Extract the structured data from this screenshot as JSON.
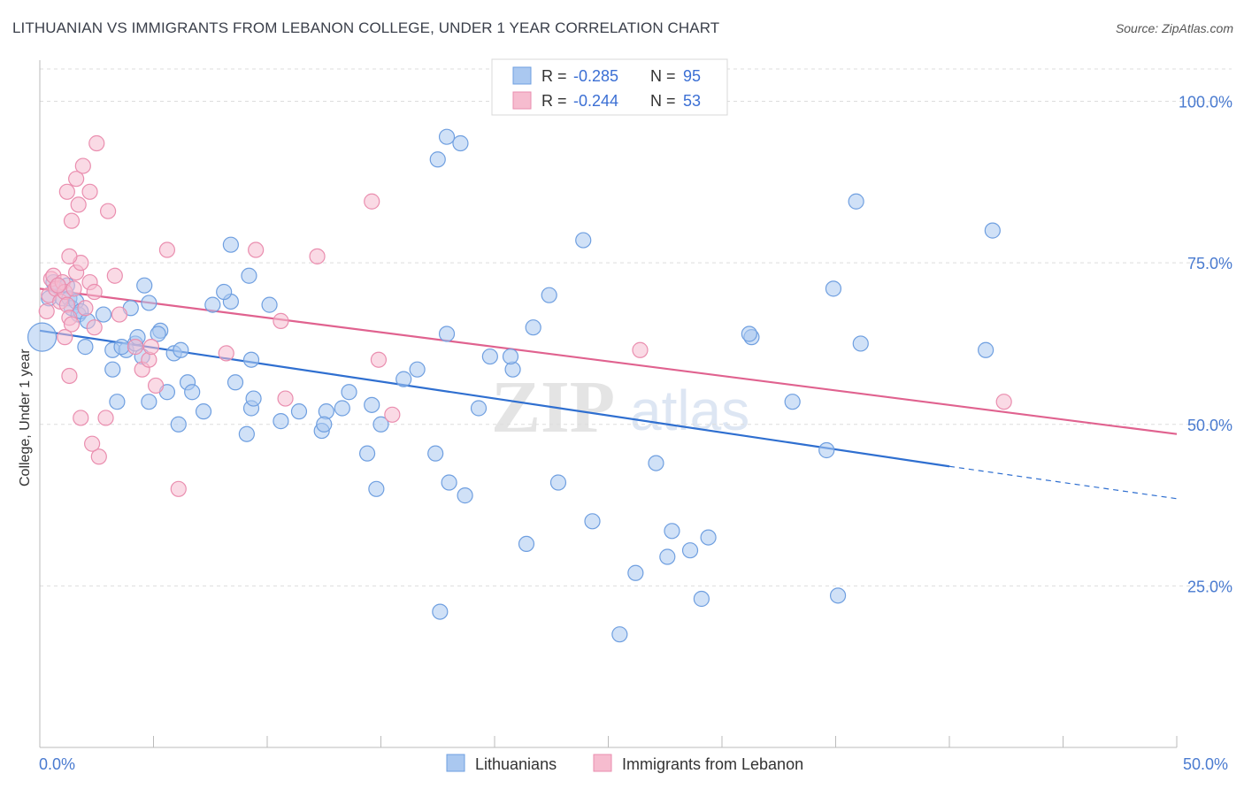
{
  "title": "LITHUANIAN VS IMMIGRANTS FROM LEBANON COLLEGE, UNDER 1 YEAR CORRELATION CHART",
  "source": "Source: ZipAtlas.com",
  "watermark": {
    "zip": "ZIP",
    "atlas": "atlas"
  },
  "colors": {
    "blue_fill": "#aac8f0",
    "blue_stroke": "#6f9fe0",
    "blue_line": "#2f6fd0",
    "pink_fill": "#f6bccf",
    "pink_stroke": "#ea8eaf",
    "pink_line": "#e0628f",
    "tick_label": "#4a7bd0",
    "grid": "#dddddd"
  },
  "legend": {
    "rows": [
      {
        "r_label": "R = ",
        "r_value": "-0.285",
        "n_label": "N = ",
        "n_value": "95",
        "series": "blue"
      },
      {
        "r_label": "R = ",
        "r_value": "-0.244",
        "n_label": "N = ",
        "n_value": "53",
        "series": "pink"
      }
    ]
  },
  "chart_data": {
    "type": "scatter",
    "title": "LITHUANIAN VS IMMIGRANTS FROM LEBANON COLLEGE, UNDER 1 YEAR CORRELATION CHART",
    "xlabel": "",
    "ylabel": "College, Under 1 year",
    "xlim": [
      0,
      50
    ],
    "ylim": [
      0,
      105
    ],
    "x_tick_labels": [
      "0.0%",
      "50.0%"
    ],
    "y_ticks": [
      25,
      50,
      75,
      100
    ],
    "y_tick_labels": [
      "25.0%",
      "50.0%",
      "75.0%",
      "100.0%"
    ],
    "grid": true,
    "legend_position": "top-center",
    "series": [
      {
        "name": "Lithuanians",
        "color": "#aac8f0",
        "points": [
          [
            0.1,
            63.5
          ],
          [
            0.4,
            69.5
          ],
          [
            0.6,
            72
          ],
          [
            0.8,
            71.5
          ],
          [
            1,
            69.5
          ],
          [
            1.2,
            71.5
          ],
          [
            1.3,
            69.5
          ],
          [
            1.4,
            68
          ],
          [
            1.6,
            69
          ],
          [
            1.7,
            67
          ],
          [
            1.8,
            67.5
          ],
          [
            2.1,
            66
          ],
          [
            2.8,
            67
          ],
          [
            2,
            62
          ],
          [
            3.2,
            61.5
          ],
          [
            4,
            68
          ],
          [
            4.6,
            71.5
          ],
          [
            4.8,
            68.8
          ],
          [
            3.4,
            53.5
          ],
          [
            3.2,
            58.5
          ],
          [
            3.8,
            61.5
          ],
          [
            4.2,
            62.5
          ],
          [
            4.3,
            63.5
          ],
          [
            4.5,
            60.5
          ],
          [
            3.6,
            62
          ],
          [
            4.8,
            53.5
          ],
          [
            5.3,
            64.5
          ],
          [
            5.9,
            61
          ],
          [
            5.6,
            55
          ],
          [
            6.2,
            61.5
          ],
          [
            5.2,
            64
          ],
          [
            6.1,
            50
          ],
          [
            6.5,
            56.5
          ],
          [
            6.7,
            55
          ],
          [
            7.2,
            52
          ],
          [
            8.4,
            77.8
          ],
          [
            8.4,
            69
          ],
          [
            7.6,
            68.5
          ],
          [
            8.6,
            56.5
          ],
          [
            9.3,
            52.5
          ],
          [
            9.1,
            48.5
          ],
          [
            10.1,
            68.5
          ],
          [
            9.3,
            60
          ],
          [
            9.4,
            54
          ],
          [
            9.2,
            73
          ],
          [
            8.1,
            70.5
          ],
          [
            10.6,
            50.5
          ],
          [
            11.4,
            52
          ],
          [
            12.4,
            49
          ],
          [
            12.6,
            52
          ],
          [
            12.5,
            50
          ],
          [
            13.3,
            52.5
          ],
          [
            13.6,
            55
          ],
          [
            14.6,
            53
          ],
          [
            15,
            50
          ],
          [
            16,
            57
          ],
          [
            14.4,
            45.5
          ],
          [
            14.8,
            40
          ],
          [
            16.6,
            58.5
          ],
          [
            17.9,
            64
          ],
          [
            18,
            41
          ],
          [
            19.3,
            52.5
          ],
          [
            18.7,
            39
          ],
          [
            20.8,
            58.5
          ],
          [
            17.4,
            45.5
          ],
          [
            20.7,
            60.5
          ],
          [
            21.4,
            31.5
          ],
          [
            22.8,
            41
          ],
          [
            21.7,
            65
          ],
          [
            19.8,
            60.5
          ],
          [
            23.9,
            78.5
          ],
          [
            22.4,
            70
          ],
          [
            24.3,
            35
          ],
          [
            27.1,
            44
          ],
          [
            29.1,
            23
          ],
          [
            27.6,
            29.5
          ],
          [
            25.5,
            17.5
          ],
          [
            31.3,
            63.5
          ],
          [
            31.2,
            64
          ],
          [
            29.4,
            32.5
          ],
          [
            27.8,
            33.5
          ],
          [
            28.6,
            30.5
          ],
          [
            26.2,
            27
          ],
          [
            35.9,
            84.5
          ],
          [
            36.1,
            62.5
          ],
          [
            41.6,
            61.5
          ],
          [
            41.9,
            80
          ],
          [
            33.1,
            53.5
          ],
          [
            34.9,
            71
          ],
          [
            34.6,
            46
          ],
          [
            35.1,
            23.5
          ],
          [
            17.6,
            21
          ],
          [
            17.9,
            94.5
          ],
          [
            18.5,
            93.5
          ],
          [
            17.5,
            91
          ]
        ]
      },
      {
        "name": "Immigrants from Lebanon",
        "color": "#f6bccf",
        "points": [
          [
            0.3,
            67.5
          ],
          [
            0.4,
            70
          ],
          [
            0.5,
            72.5
          ],
          [
            0.6,
            73
          ],
          [
            0.7,
            71
          ],
          [
            0.9,
            69
          ],
          [
            1,
            72
          ],
          [
            1.1,
            70.5
          ],
          [
            1.2,
            68.5
          ],
          [
            1.3,
            66.5
          ],
          [
            1.4,
            65.5
          ],
          [
            1.5,
            71
          ],
          [
            1.6,
            73.5
          ],
          [
            1.8,
            75
          ],
          [
            2,
            68
          ],
          [
            2.2,
            72
          ],
          [
            2.4,
            70.5
          ],
          [
            1.2,
            86
          ],
          [
            1.3,
            76
          ],
          [
            1.4,
            81.5
          ],
          [
            1.6,
            88
          ],
          [
            1.7,
            84
          ],
          [
            1.9,
            90
          ],
          [
            2.2,
            86
          ],
          [
            2.5,
            93.5
          ],
          [
            3,
            83
          ],
          [
            3.3,
            73
          ],
          [
            3.5,
            67
          ],
          [
            4.2,
            62
          ],
          [
            4.5,
            58.5
          ],
          [
            4.8,
            60
          ],
          [
            5.1,
            56
          ],
          [
            4.9,
            62
          ],
          [
            2.4,
            65
          ],
          [
            2.9,
            51
          ],
          [
            1.8,
            51
          ],
          [
            2.6,
            45
          ],
          [
            2.3,
            47
          ],
          [
            5.6,
            77
          ],
          [
            6.1,
            40
          ],
          [
            8.2,
            61
          ],
          [
            9.5,
            77
          ],
          [
            10.6,
            66
          ],
          [
            10.8,
            54
          ],
          [
            12.2,
            76
          ],
          [
            14.6,
            84.5
          ],
          [
            14.9,
            60
          ],
          [
            15.5,
            51.5
          ],
          [
            26.4,
            61.5
          ],
          [
            42.4,
            53.5
          ],
          [
            0.8,
            71.5
          ],
          [
            1.1,
            63.5
          ],
          [
            1.3,
            57.5
          ]
        ]
      }
    ],
    "trend_lines": [
      {
        "series": "Lithuanians",
        "solid": [
          [
            0,
            64.5
          ],
          [
            40,
            43.5
          ]
        ],
        "dashed": [
          [
            40,
            43.5
          ],
          [
            50,
            38.5
          ]
        ]
      },
      {
        "series": "Immigrants from Lebanon",
        "solid": [
          [
            0,
            71
          ],
          [
            50,
            48.5
          ]
        ]
      }
    ]
  },
  "bottom_legend": [
    {
      "label": "Lithuanians",
      "series": "blue"
    },
    {
      "label": "Immigrants from Lebanon",
      "series": "pink"
    }
  ]
}
